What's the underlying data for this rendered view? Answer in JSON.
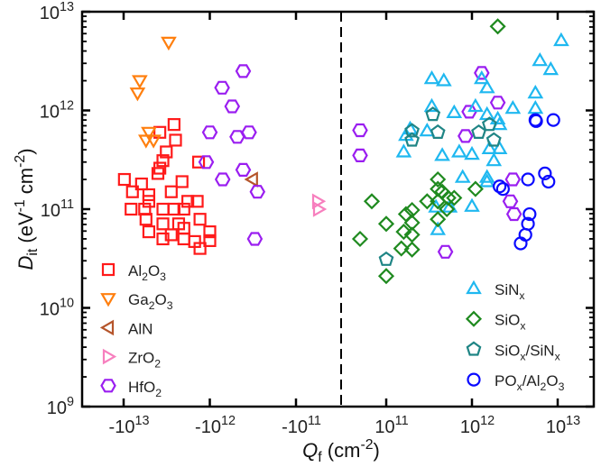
{
  "chart_data": {
    "type": "scatter",
    "title": "",
    "xscale": "symlog",
    "yscale": "log",
    "xlim": [
      -30000000000000,
      30000000000000
    ],
    "linear_threshold": 100000000000,
    "ylim": [
      1000000000,
      10000000000000
    ],
    "divider_x": 0,
    "xlabel_parts": [
      {
        "t": "Q",
        "s": "i"
      },
      {
        "t": "f",
        "s": "sub"
      },
      {
        "t": " (cm",
        "s": ""
      },
      {
        "t": "-2",
        "s": "sup"
      },
      {
        "t": ")",
        "s": ""
      }
    ],
    "ylabel_parts": [
      {
        "t": "D",
        "s": "i"
      },
      {
        "t": "it",
        "s": "sub"
      },
      {
        "t": " (eV",
        "s": ""
      },
      {
        "t": "-1",
        "s": "sup"
      },
      {
        "t": " cm",
        "s": ""
      },
      {
        "t": "-2",
        "s": "sup"
      },
      {
        "t": ")",
        "s": ""
      }
    ],
    "xticks": [
      {
        "value": -10000000000000,
        "base": "-10",
        "exp": "13"
      },
      {
        "value": -1000000000000,
        "base": "-10",
        "exp": "12"
      },
      {
        "value": -100000000000,
        "base": "-10",
        "exp": "11"
      },
      {
        "value": 100000000000,
        "base": "10",
        "exp": "11"
      },
      {
        "value": 1000000000000,
        "base": "10",
        "exp": "12"
      },
      {
        "value": 10000000000000,
        "base": "10",
        "exp": "13"
      }
    ],
    "yticks": [
      {
        "value": 10000000000000,
        "base": "10",
        "exp": "13"
      },
      {
        "value": 1000000000000,
        "base": "10",
        "exp": "12"
      },
      {
        "value": 100000000000,
        "base": "10",
        "exp": "11"
      },
      {
        "value": 10000000000,
        "base": "10",
        "exp": "10"
      },
      {
        "value": 1000000000,
        "base": "10",
        "exp": "9"
      }
    ],
    "legends": [
      {
        "placement": "bottom-left",
        "series": [
          "Al2O3",
          "Ga2O3",
          "AlN",
          "ZrO2",
          "HfO2"
        ]
      },
      {
        "placement": "bottom-right",
        "series": [
          "SiNx",
          "SiOx",
          "SiOx/SiNx",
          "POx/Al2O3"
        ]
      }
    ],
    "series": [
      {
        "name": "Al2O3",
        "marker": "square",
        "color": "#ff1a1a",
        "label_parts": [
          {
            "t": "Al",
            "s": ""
          },
          {
            "t": "2",
            "s": "sub"
          },
          {
            "t": "O",
            "s": ""
          },
          {
            "t": "3",
            "s": "sub"
          }
        ],
        "points": [
          [
            -9800000000000.0,
            200000000000.0
          ],
          [
            -6200000000000.0,
            180000000000.0
          ],
          [
            -7900000000000.0,
            150000000000.0
          ],
          [
            -5100000000000.0,
            140000000000.0
          ],
          [
            -5100000000000.0,
            120000000000.0
          ],
          [
            -8200000000000.0,
            100000000000.0
          ],
          [
            -5700000000000.0,
            100000000000.0
          ],
          [
            -5500000000000.0,
            79000000000.0
          ],
          [
            -5100000000000.0,
            59000000000.0
          ],
          [
            -3500000000000.0,
            100000000000.0
          ],
          [
            -3500000000000.0,
            71000000000.0
          ],
          [
            -3500000000000.0,
            50000000000.0
          ],
          [
            -2800000000000.0,
            150000000000.0
          ],
          [
            -2100000000000.0,
            190000000000.0
          ],
          [
            -2600000000000.0,
            100000000000.0
          ],
          [
            -2300000000000.0,
            71000000000.0
          ],
          [
            -2800000000000.0,
            55000000000.0
          ],
          [
            -2000000000000.0,
            50000000000.0
          ],
          [
            -1800000000000.0,
            120000000000.0
          ],
          [
            -1400000000000.0,
            120000000000.0
          ],
          [
            -1300000000000.0,
            79000000000.0
          ],
          [
            -1000000000000.0,
            59000000000.0
          ],
          [
            -1000000000000.0,
            48000000000.0
          ],
          [
            -1500000000000.0,
            47000000000.0
          ],
          [
            -1300000000000.0,
            40000000000.0
          ],
          [
            -2000000000000.0,
            64000000000.0
          ],
          [
            -3800000000000.0,
            260000000000.0
          ],
          [
            -4000000000000.0,
            230000000000.0
          ],
          [
            -3500000000000.0,
            310000000000.0
          ],
          [
            -3200000000000.0,
            380000000000.0
          ],
          [
            -3800000000000.0,
            600000000000.0
          ],
          [
            -2600000000000.0,
            720000000000.0
          ],
          [
            -2500000000000.0,
            500000000000.0
          ],
          [
            -1350000000000.0,
            300000000000.0
          ],
          [
            -2000000000000.0,
            100000000000.0
          ]
        ]
      },
      {
        "name": "Ga2O3",
        "marker": "triangle-down",
        "color": "#ff7f0e",
        "label_parts": [
          {
            "t": "Ga",
            "s": ""
          },
          {
            "t": "2",
            "s": "sub"
          },
          {
            "t": "O",
            "s": ""
          },
          {
            "t": "3",
            "s": "sub"
          }
        ],
        "points": [
          [
            -3000000000000.0,
            4900000000000.0
          ],
          [
            -6500000000000.0,
            2000000000000.0
          ],
          [
            -6900000000000.0,
            1500000000000.0
          ],
          [
            -5100000000000.0,
            600000000000.0
          ],
          [
            -5500000000000.0,
            500000000000.0
          ],
          [
            -4500000000000.0,
            500000000000.0
          ]
        ]
      },
      {
        "name": "AlN",
        "marker": "triangle-left",
        "color": "#b5552b",
        "label_parts": [
          {
            "t": "AlN",
            "s": ""
          }
        ],
        "points": [
          [
            -320000000000.0,
            200000000000.0
          ]
        ]
      },
      {
        "name": "ZrO2",
        "marker": "triangle-right",
        "color": "#f77fbe",
        "label_parts": [
          {
            "t": "ZrO",
            "s": ""
          },
          {
            "t": "2",
            "s": "sub"
          }
        ],
        "points": [
          [
            -52000000000.0,
            120000000000.0
          ],
          [
            -50000000000.0,
            100000000000.0
          ]
        ]
      },
      {
        "name": "HfO2",
        "marker": "hexagon",
        "color": "#9a1ef0",
        "label_parts": [
          {
            "t": "HfO",
            "s": ""
          },
          {
            "t": "2",
            "s": "sub"
          }
        ],
        "points": [
          [
            -410000000000.0,
            2500000000000.0
          ],
          [
            -720000000000.0,
            1700000000000.0
          ],
          [
            -550000000000.0,
            1100000000000.0
          ],
          [
            -1000000000000.0,
            600000000000.0
          ],
          [
            -480000000000.0,
            540000000000.0
          ],
          [
            -350000000000.0,
            600000000000.0
          ],
          [
            -1100000000000.0,
            300000000000.0
          ],
          [
            -710000000000.0,
            200000000000.0
          ],
          [
            -410000000000.0,
            250000000000.0
          ],
          [
            -280000000000.0,
            150000000000.0
          ],
          [
            -300000000000.0,
            50000000000.0
          ],
          [
            42000000000.0,
            630000000000.0
          ],
          [
            42000000000.0,
            350000000000.0
          ],
          [
            1300000000000.0,
            2400000000000.0
          ],
          [
            2000000000000.0,
            1200000000000.0
          ],
          [
            930000000000.0,
            970000000000.0
          ],
          [
            840000000000.0,
            550000000000.0
          ],
          [
            3000000000000.0,
            200000000000.0
          ],
          [
            2800000000000.0,
            120000000000.0
          ],
          [
            3100000000000.0,
            89000000000.0
          ],
          [
            490000000000.0,
            37000000000.0
          ]
        ]
      },
      {
        "name": "SiNx",
        "marker": "triangle-up",
        "color": "#1fb8f0",
        "label_parts": [
          {
            "t": "SiN",
            "s": ""
          },
          {
            "t": "x",
            "s": "sub"
          }
        ],
        "points": [
          [
            11000000000000.0,
            5100000000000.0
          ],
          [
            6200000000000.0,
            3200000000000.0
          ],
          [
            8300000000000.0,
            2600000000000.0
          ],
          [
            5500000000000.0,
            1500000000000.0
          ],
          [
            5500000000000.0,
            1050000000000.0
          ],
          [
            3000000000000.0,
            1050000000000.0
          ],
          [
            340000000000.0,
            2100000000000.0
          ],
          [
            470000000000.0,
            2000000000000.0
          ],
          [
            1300000000000.0,
            2100000000000.0
          ],
          [
            1500000000000.0,
            1700000000000.0
          ],
          [
            340000000000.0,
            1100000000000.0
          ],
          [
            620000000000.0,
            950000000000.0
          ],
          [
            1100000000000.0,
            1100000000000.0
          ],
          [
            1500000000000.0,
            910000000000.0
          ],
          [
            2000000000000.0,
            820000000000.0
          ],
          [
            2100000000000.0,
            720000000000.0
          ],
          [
            190000000000.0,
            650000000000.0
          ],
          [
            170000000000.0,
            560000000000.0
          ],
          [
            300000000000.0,
            620000000000.0
          ],
          [
            160000000000.0,
            380000000000.0
          ],
          [
            450000000000.0,
            350000000000.0
          ],
          [
            710000000000.0,
            380000000000.0
          ],
          [
            1000000000000.0,
            360000000000.0
          ],
          [
            1600000000000.0,
            410000000000.0
          ],
          [
            2100000000000.0,
            410000000000.0
          ],
          [
            1800000000000.0,
            310000000000.0
          ],
          [
            780000000000.0,
            210000000000.0
          ],
          [
            1500000000000.0,
            210000000000.0
          ],
          [
            1500000000000.0,
            190000000000.0
          ],
          [
            1000000000000.0,
            107000000000.0
          ],
          [
            400000000000.0,
            62000000000.0
          ],
          [
            380000000000.0,
            105000000000.0
          ],
          [
            550000000000.0,
            105000000000.0
          ]
        ]
      },
      {
        "name": "SiOx",
        "marker": "diamond",
        "color": "#1f8a1f",
        "label_parts": [
          {
            "t": "SiO",
            "s": ""
          },
          {
            "t": "x",
            "s": "sub"
          }
        ],
        "points": [
          [
            2000000000000.0,
            7100000000000.0
          ],
          [
            68000000000.0,
            120000000000.0
          ],
          [
            42000000000.0,
            50000000000.0
          ],
          [
            100000000000.0,
            71000000000.0
          ],
          [
            100000000000.0,
            21000000000.0
          ],
          [
            170000000000.0,
            89000000000.0
          ],
          [
            200000000000.0,
            98000000000.0
          ],
          [
            200000000000.0,
            73000000000.0
          ],
          [
            160000000000.0,
            59000000000.0
          ],
          [
            200000000000.0,
            55000000000.0
          ],
          [
            150000000000.0,
            40000000000.0
          ],
          [
            200000000000.0,
            39000000000.0
          ],
          [
            300000000000.0,
            120000000000.0
          ],
          [
            400000000000.0,
            200000000000.0
          ],
          [
            400000000000.0,
            160000000000.0
          ],
          [
            450000000000.0,
            150000000000.0
          ],
          [
            530000000000.0,
            130000000000.0
          ],
          [
            620000000000.0,
            130000000000.0
          ],
          [
            400000000000.0,
            120000000000.0
          ],
          [
            510000000000.0,
            100000000000.0
          ],
          [
            400000000000.0,
            79000000000.0
          ],
          [
            1100000000000.0,
            160000000000.0
          ]
        ]
      },
      {
        "name": "SiOx/SiNx",
        "marker": "pentagon",
        "color": "#1f8585",
        "label_parts": [
          {
            "t": "SiO",
            "s": ""
          },
          {
            "t": "x",
            "s": "sub"
          },
          {
            "t": "/SiN",
            "s": ""
          },
          {
            "t": "x",
            "s": "sub"
          }
        ],
        "points": [
          [
            200000000000.0,
            620000000000.0
          ],
          [
            200000000000.0,
            500000000000.0
          ],
          [
            350000000000.0,
            910000000000.0
          ],
          [
            400000000000.0,
            600000000000.0
          ],
          [
            1200000000000.0,
            600000000000.0
          ],
          [
            1600000000000.0,
            720000000000.0
          ],
          [
            1800000000000.0,
            500000000000.0
          ],
          [
            100000000000.0,
            31000000000.0
          ]
        ]
      },
      {
        "name": "POx/Al2O3",
        "marker": "circle",
        "color": "#0a0aff",
        "label_parts": [
          {
            "t": "PO",
            "s": ""
          },
          {
            "t": "x",
            "s": "sub"
          },
          {
            "t": "/Al",
            "s": ""
          },
          {
            "t": "2",
            "s": "sub"
          },
          {
            "t": "O",
            "s": ""
          },
          {
            "t": "3",
            "s": "sub"
          }
        ],
        "points": [
          [
            5500000000000.0,
            800000000000.0
          ],
          [
            5600000000000.0,
            780000000000.0
          ],
          [
            8900000000000.0,
            800000000000.0
          ],
          [
            2100000000000.0,
            170000000000.0
          ],
          [
            2300000000000.0,
            160000000000.0
          ],
          [
            4500000000000.0,
            200000000000.0
          ],
          [
            7100000000000.0,
            230000000000.0
          ],
          [
            7800000000000.0,
            190000000000.0
          ],
          [
            4700000000000.0,
            89000000000.0
          ],
          [
            4500000000000.0,
            71000000000.0
          ],
          [
            4200000000000.0,
            55000000000.0
          ],
          [
            3700000000000.0,
            45000000000.0
          ]
        ]
      }
    ]
  }
}
